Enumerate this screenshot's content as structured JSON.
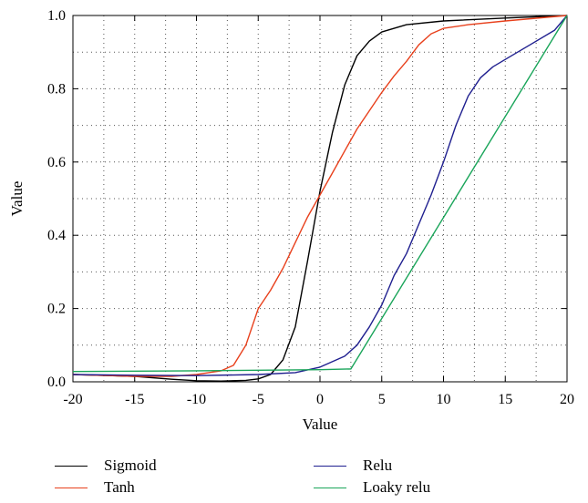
{
  "chart_data": {
    "type": "line",
    "title": "",
    "xlabel": "Value",
    "ylabel": "Value",
    "xlim": [
      -20,
      20
    ],
    "ylim": [
      0,
      1
    ],
    "grid": true,
    "legend_position": "bottom",
    "x_ticks": [
      -20,
      -15,
      -10,
      -5,
      0,
      5,
      10,
      15,
      20
    ],
    "y_ticks": [
      0.0,
      0.2,
      0.4,
      0.6,
      0.8,
      1.0
    ],
    "x_tick_labels": [
      "-20",
      "-15",
      "-10",
      "-5",
      "0",
      "5",
      "10",
      "15",
      "20"
    ],
    "y_tick_labels": [
      "0.0",
      "0.2",
      "0.4",
      "0.6",
      "0.8",
      "1.0"
    ],
    "series": [
      {
        "name": "Sigmoid",
        "color": "#000000",
        "points": [
          [
            -20,
            0.02
          ],
          [
            -15,
            0.015
          ],
          [
            -12,
            0.007
          ],
          [
            -10,
            0.003
          ],
          [
            -8,
            0.002
          ],
          [
            -6,
            0.004
          ],
          [
            -5,
            0.008
          ],
          [
            -4,
            0.02
          ],
          [
            -3,
            0.06
          ],
          [
            -2,
            0.15
          ],
          [
            -1,
            0.33
          ],
          [
            0,
            0.52
          ],
          [
            0.5,
            0.6
          ],
          [
            1,
            0.68
          ],
          [
            2,
            0.81
          ],
          [
            3,
            0.89
          ],
          [
            4,
            0.93
          ],
          [
            5,
            0.955
          ],
          [
            7,
            0.975
          ],
          [
            10,
            0.985
          ],
          [
            15,
            0.993
          ],
          [
            20,
            1.0
          ]
        ]
      },
      {
        "name": "Tanh",
        "color": "#e8401c",
        "points": [
          [
            -20,
            0.02
          ],
          [
            -15,
            0.015
          ],
          [
            -12,
            0.015
          ],
          [
            -10,
            0.02
          ],
          [
            -9,
            0.025
          ],
          [
            -8,
            0.03
          ],
          [
            -7,
            0.045
          ],
          [
            -6,
            0.1
          ],
          [
            -5,
            0.2
          ],
          [
            -4,
            0.25
          ],
          [
            -3,
            0.31
          ],
          [
            -2,
            0.38
          ],
          [
            -1,
            0.45
          ],
          [
            0,
            0.51
          ],
          [
            1,
            0.57
          ],
          [
            2,
            0.63
          ],
          [
            3,
            0.69
          ],
          [
            4,
            0.74
          ],
          [
            5,
            0.79
          ],
          [
            6,
            0.835
          ],
          [
            7,
            0.875
          ],
          [
            8,
            0.92
          ],
          [
            9,
            0.95
          ],
          [
            10,
            0.965
          ],
          [
            12,
            0.975
          ],
          [
            15,
            0.985
          ],
          [
            20,
            1.0
          ]
        ]
      },
      {
        "name": "Relu",
        "color": "#1f1f8f",
        "points": [
          [
            -20,
            0.02
          ],
          [
            -15,
            0.018
          ],
          [
            -10,
            0.017
          ],
          [
            -5,
            0.02
          ],
          [
            -2,
            0.025
          ],
          [
            0,
            0.04
          ],
          [
            2,
            0.07
          ],
          [
            3,
            0.1
          ],
          [
            4,
            0.15
          ],
          [
            5,
            0.21
          ],
          [
            6,
            0.29
          ],
          [
            7,
            0.35
          ],
          [
            8,
            0.43
          ],
          [
            9,
            0.51
          ],
          [
            10,
            0.6
          ],
          [
            11,
            0.7
          ],
          [
            12,
            0.78
          ],
          [
            13,
            0.83
          ],
          [
            14,
            0.86
          ],
          [
            15,
            0.88
          ],
          [
            17,
            0.92
          ],
          [
            19,
            0.96
          ],
          [
            20,
            1.0
          ]
        ]
      },
      {
        "name": "Loaky relu",
        "color": "#1aa55a",
        "points": [
          [
            -20,
            0.028
          ],
          [
            -10,
            0.03
          ],
          [
            0,
            0.033
          ],
          [
            2.5,
            0.035
          ],
          [
            20,
            1.0
          ]
        ]
      }
    ]
  }
}
